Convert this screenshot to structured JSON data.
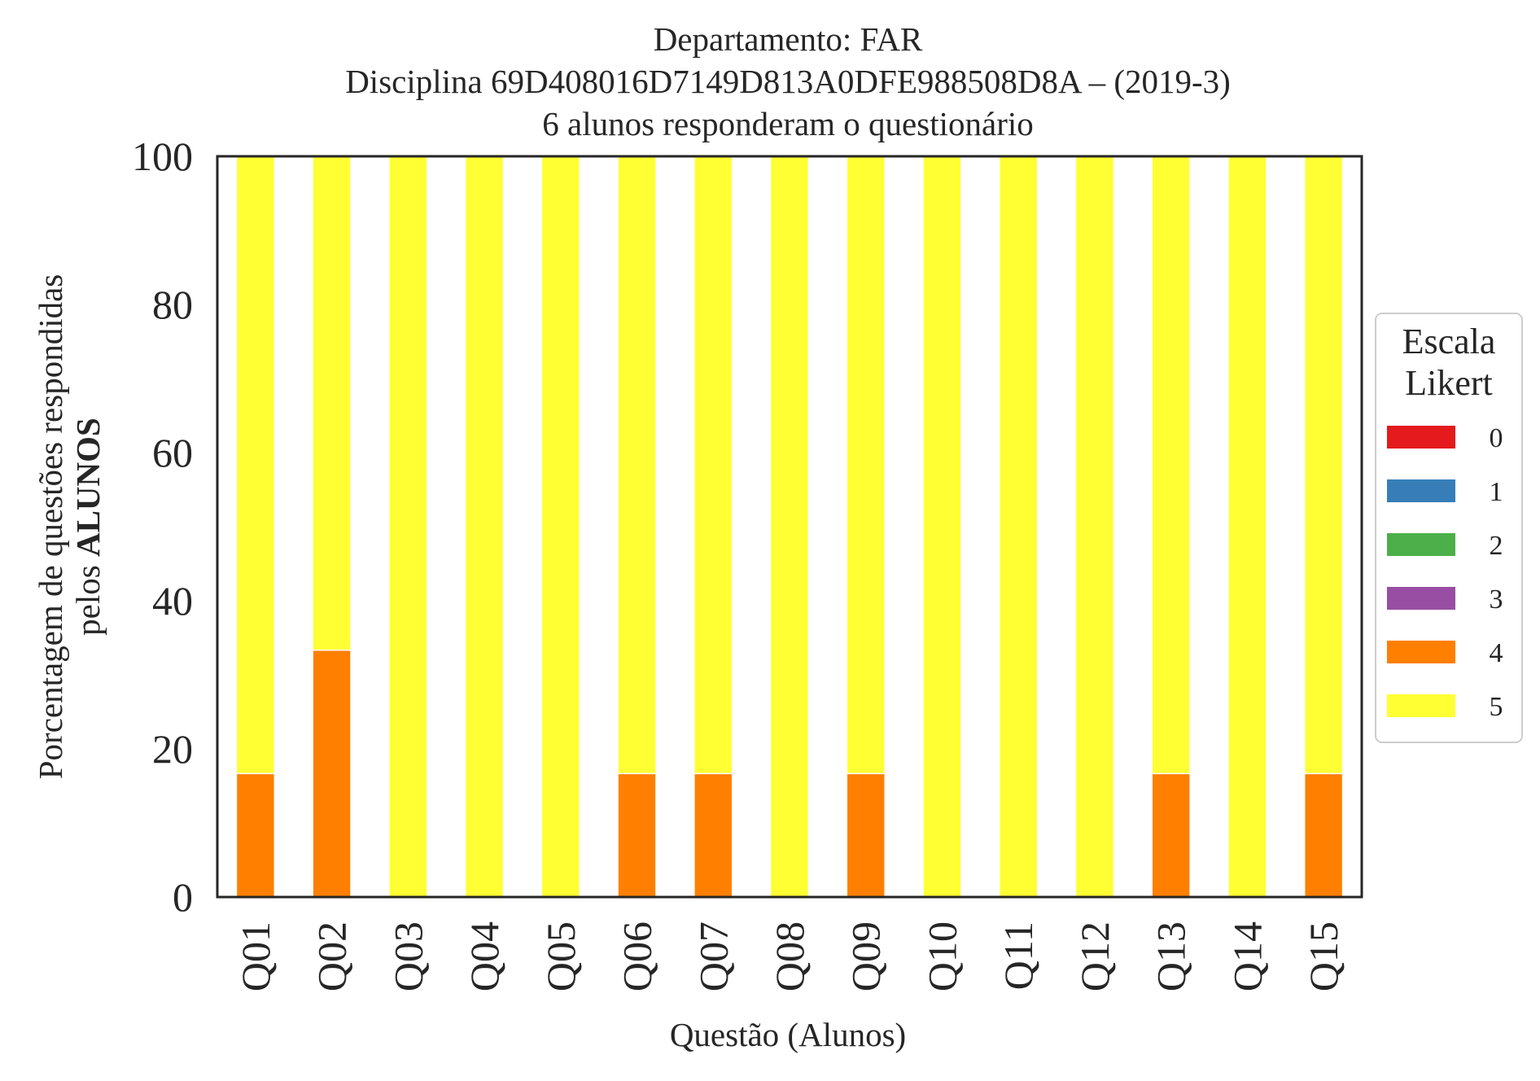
{
  "chart_data": {
    "type": "bar",
    "stacked": true,
    "title": [
      "Departamento: FAR",
      "Disciplina 69D408016D7149D813A0DFE988508D8A – (2019-3)",
      "6 alunos responderam o questionário"
    ],
    "xlabel": "Questão (Alunos)",
    "ylabel": {
      "line1": "Porcentagem de questões respondidas",
      "line2_prefix": "pelos ",
      "line2_bold": "ALUNOS"
    },
    "ylim": [
      0,
      100
    ],
    "yticks": [
      "0",
      "20",
      "40",
      "60",
      "80",
      "100"
    ],
    "categories": [
      "Q01",
      "Q02",
      "Q03",
      "Q04",
      "Q05",
      "Q06",
      "Q07",
      "Q08",
      "Q09",
      "Q10",
      "Q11",
      "Q12",
      "Q13",
      "Q14",
      "Q15"
    ],
    "series": [
      {
        "name": "0",
        "color": "#e41a1c",
        "values": [
          0,
          0,
          0,
          0,
          0,
          0,
          0,
          0,
          0,
          0,
          0,
          0,
          0,
          0,
          0
        ]
      },
      {
        "name": "1",
        "color": "#377eb8",
        "values": [
          0,
          0,
          0,
          0,
          0,
          0,
          0,
          0,
          0,
          0,
          0,
          0,
          0,
          0,
          0
        ]
      },
      {
        "name": "2",
        "color": "#4daf4a",
        "values": [
          0,
          0,
          0,
          0,
          0,
          0,
          0,
          0,
          0,
          0,
          0,
          0,
          0,
          0,
          0
        ]
      },
      {
        "name": "3",
        "color": "#984ea3",
        "values": [
          0,
          0,
          0,
          0,
          0,
          0,
          0,
          0,
          0,
          0,
          0,
          0,
          0,
          0,
          0
        ]
      },
      {
        "name": "4",
        "color": "#ff7f00",
        "values": [
          16.67,
          33.33,
          0,
          0,
          0,
          16.67,
          16.67,
          0,
          16.67,
          0,
          0,
          0,
          16.67,
          0,
          16.67
        ]
      },
      {
        "name": "5",
        "color": "#ffff33",
        "values": [
          83.33,
          66.67,
          100,
          100,
          100,
          83.33,
          83.33,
          100,
          83.33,
          100,
          100,
          100,
          83.33,
          100,
          83.33
        ]
      }
    ],
    "legend": {
      "title": [
        "Escala",
        "Likert"
      ],
      "position": "right"
    },
    "grid": false
  }
}
